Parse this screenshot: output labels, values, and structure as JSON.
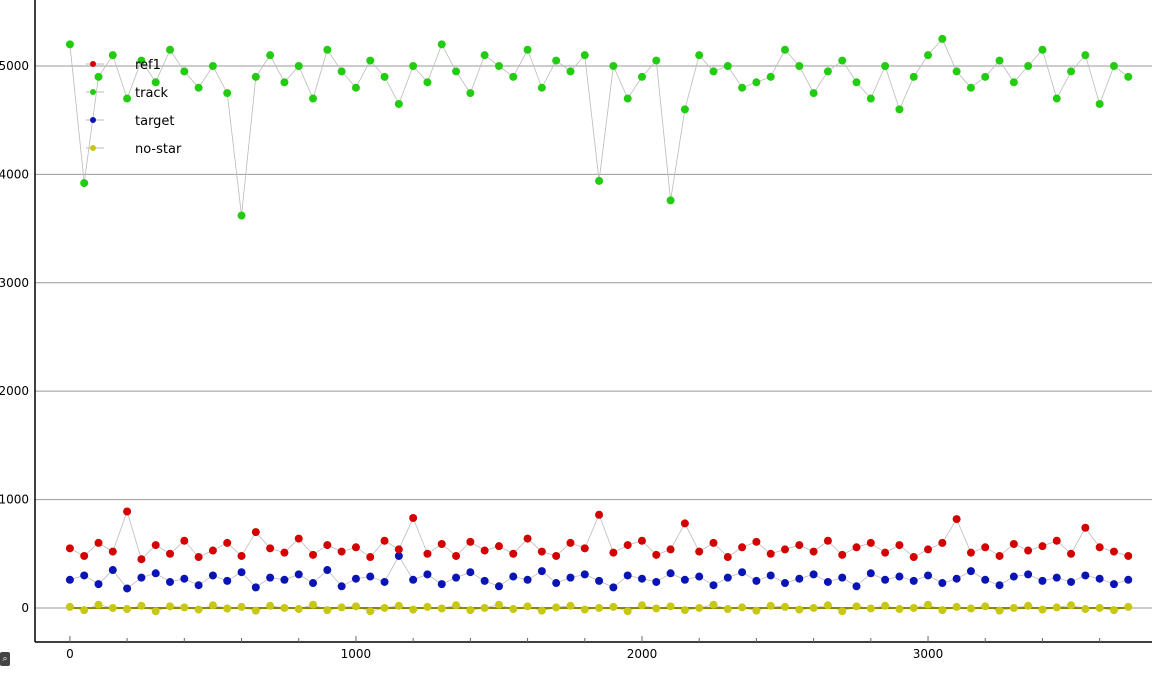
{
  "chart_data": {
    "type": "scatter",
    "title": "",
    "xlabel": "",
    "ylabel": "",
    "xlim": [
      -122,
      3783
    ],
    "ylim": [
      -314,
      5609
    ],
    "grid": "horizontal",
    "xticks": [
      0,
      1000,
      2000,
      3000
    ],
    "xticks_minor_step": 200,
    "yticks": [
      0,
      1000,
      2000,
      3000,
      4000,
      5000
    ],
    "legend_placement": "top-left",
    "x": [
      0,
      50,
      100,
      150,
      200,
      250,
      300,
      350,
      400,
      450,
      500,
      550,
      600,
      650,
      700,
      750,
      800,
      850,
      900,
      950,
      1000,
      1050,
      1100,
      1150,
      1200,
      1250,
      1300,
      1350,
      1400,
      1450,
      1500,
      1550,
      1600,
      1650,
      1700,
      1750,
      1800,
      1850,
      1900,
      1950,
      2000,
      2050,
      2100,
      2150,
      2200,
      2250,
      2300,
      2350,
      2400,
      2450,
      2500,
      2550,
      2600,
      2650,
      2700,
      2750,
      2800,
      2850,
      2900,
      2950,
      3000,
      3050,
      3100,
      3150,
      3200,
      3250,
      3300,
      3350,
      3400,
      3450,
      3500,
      3550,
      3600,
      3650,
      3700
    ],
    "series": [
      {
        "name": "ref1",
        "color": "#d40000",
        "values": [
          550,
          480,
          600,
          520,
          890,
          450,
          580,
          500,
          620,
          470,
          530,
          600,
          480,
          700,
          550,
          510,
          640,
          490,
          580,
          520,
          560,
          470,
          620,
          540,
          830,
          500,
          590,
          480,
          610,
          530,
          570,
          500,
          640,
          520,
          480,
          600,
          550,
          860,
          510,
          580,
          620,
          490,
          540,
          780,
          520,
          600,
          470,
          560,
          610,
          500,
          540,
          580,
          520,
          620,
          490,
          560,
          600,
          510,
          580,
          470,
          540,
          600,
          820,
          510,
          560,
          480,
          590,
          530,
          570,
          620,
          500,
          740,
          560,
          520,
          480
        ]
      },
      {
        "name": "track",
        "color": "#22cc11",
        "values": [
          5200,
          3920,
          4900,
          5100,
          4700,
          5050,
          4850,
          5150,
          4950,
          4800,
          5000,
          4750,
          3620,
          4900,
          5100,
          4850,
          5000,
          4700,
          5150,
          4950,
          4800,
          5050,
          4900,
          4650,
          5000,
          4850,
          5200,
          4950,
          4750,
          5100,
          5000,
          4900,
          5150,
          4800,
          5050,
          4950,
          5100,
          3940,
          5000,
          4700,
          4900,
          5050,
          3760,
          4600,
          5100,
          4950,
          5000,
          4800,
          4850,
          4900,
          5150,
          5000,
          4750,
          4950,
          5050,
          4850,
          4700,
          5000,
          4600,
          4900,
          5100,
          5250,
          4950,
          4800,
          4900,
          5050,
          4850,
          5000,
          5150,
          4700,
          4950,
          5100,
          4650,
          5000,
          4900
        ]
      },
      {
        "name": "target",
        "color": "#0a14b4",
        "values": [
          260,
          300,
          220,
          350,
          180,
          280,
          320,
          240,
          270,
          210,
          300,
          250,
          330,
          190,
          280,
          260,
          310,
          230,
          350,
          200,
          270,
          290,
          240,
          480,
          260,
          310,
          220,
          280,
          330,
          250,
          200,
          290,
          260,
          340,
          230,
          280,
          310,
          250,
          190,
          300,
          270,
          240,
          320,
          260,
          290,
          210,
          280,
          330,
          250,
          300,
          230,
          270,
          310,
          240,
          280,
          200,
          320,
          260,
          290,
          250,
          300,
          230,
          270,
          340,
          260,
          210,
          290,
          310,
          250,
          280,
          240,
          300,
          270,
          220,
          260
        ]
      },
      {
        "name": "no-star",
        "color": "#c8c814",
        "values": [
          10,
          -20,
          30,
          0,
          -10,
          20,
          -30,
          15,
          5,
          -15,
          25,
          -5,
          10,
          -25,
          20,
          0,
          -10,
          30,
          -20,
          5,
          15,
          -30,
          0,
          20,
          -15,
          10,
          -5,
          25,
          -20,
          0,
          30,
          -10,
          15,
          -25,
          5,
          20,
          -15,
          0,
          10,
          -30,
          25,
          -5,
          15,
          -20,
          0,
          30,
          -10,
          5,
          -25,
          20,
          10,
          -15,
          0,
          25,
          -30,
          15,
          -5,
          20,
          -10,
          0,
          30,
          -20,
          10,
          -5,
          15,
          -25,
          0,
          20,
          -15,
          5,
          25,
          -10,
          0,
          -20,
          10
        ]
      }
    ]
  }
}
